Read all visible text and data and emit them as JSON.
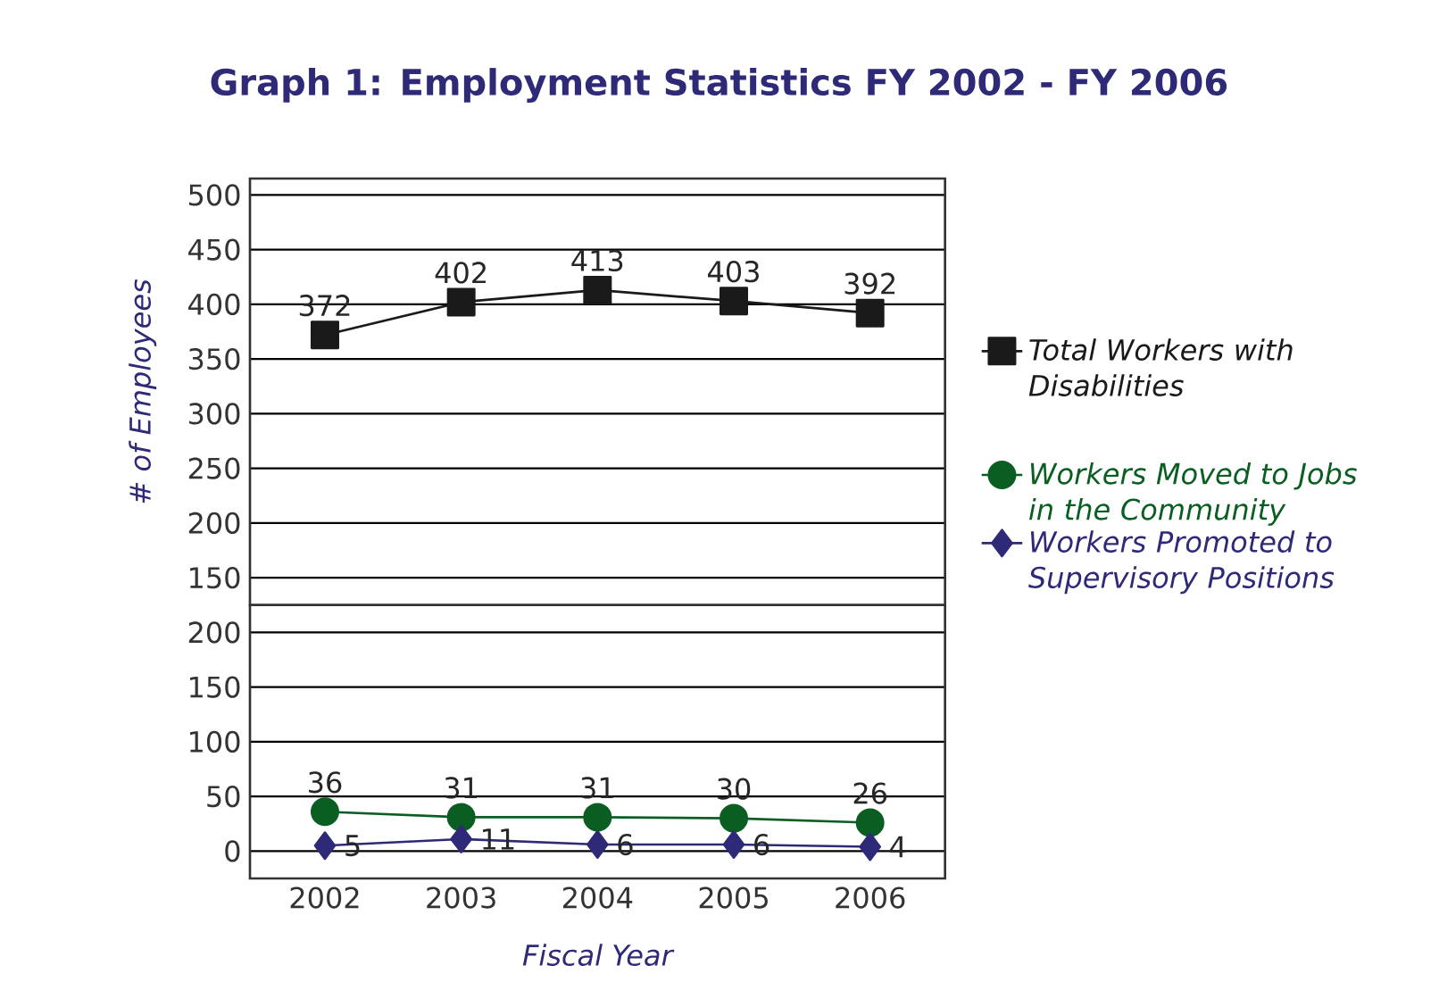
{
  "chart_data": [
    {
      "type": "line",
      "title": "Graph 1: Employment Statistics FY 2002 - FY 2006",
      "ylabel": "# of Employees",
      "categories": [
        "2002",
        "2003",
        "2004",
        "2005",
        "2006"
      ],
      "series": [
        {
          "name": "Total Workers with Disabilities",
          "color": "#1a1a1a",
          "marker": "square",
          "values": [
            372,
            402,
            413,
            403,
            392
          ]
        }
      ],
      "ylim": [
        125,
        515
      ],
      "yticks": [
        150,
        200,
        250,
        300,
        350,
        400,
        450,
        500
      ],
      "grid": "y",
      "legend": "right",
      "data_labels": true,
      "tick_labels": "y"
    },
    {
      "type": "line",
      "xlabel": "Fiscal Year",
      "categories": [
        "2002",
        "2003",
        "2004",
        "2005",
        "2006"
      ],
      "series": [
        {
          "name": "Workers Moved to Jobs in the Community",
          "color": "#0b5e22",
          "marker": "circle",
          "values": [
            36,
            31,
            31,
            30,
            26
          ]
        },
        {
          "name": "Workers Promoted to Supervisory Positions",
          "color": "#2e2a78",
          "marker": "diamond",
          "values": [
            5,
            11,
            6,
            6,
            4
          ]
        }
      ],
      "ylim": [
        -25,
        225
      ],
      "yticks": [
        0,
        50,
        100,
        150,
        200
      ],
      "grid": "y",
      "legend": "right",
      "data_labels": true
    }
  ]
}
